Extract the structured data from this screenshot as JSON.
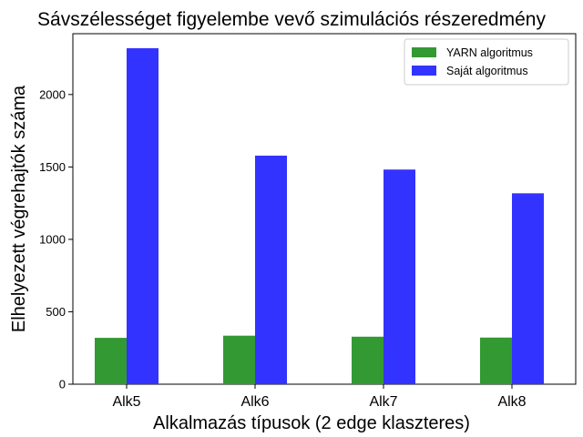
{
  "chart_data": {
    "type": "bar",
    "title": "Sávszélességet figyelembe vevő szimulációs részeredmény",
    "xlabel": "Alkalmazás típusok (2 edge klaszteres)",
    "ylabel": "Elhelyezett végrehajtók száma",
    "categories": [
      "Alk5",
      "Alk6",
      "Alk7",
      "Alk8"
    ],
    "series": [
      {
        "name": "YARN algoritmus",
        "color": "#339933",
        "values": [
          320,
          335,
          328,
          322
        ]
      },
      {
        "name": "Saját algoritmus",
        "color": "#3333ff",
        "values": [
          2320,
          1578,
          1482,
          1318
        ]
      }
    ],
    "ylim": [
      0,
      2420
    ],
    "yticks": [
      0,
      500,
      1000,
      1500,
      2000
    ],
    "grid": false,
    "legend_position": "top-right"
  }
}
